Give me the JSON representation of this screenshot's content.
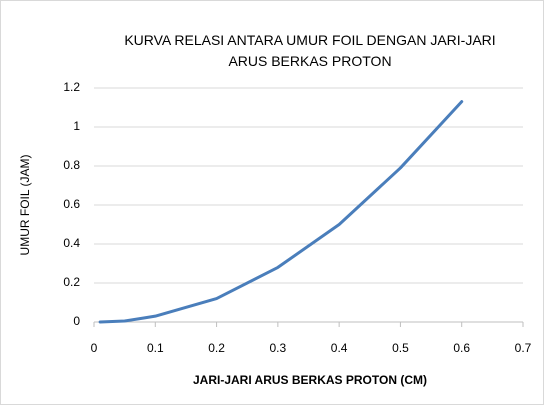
{
  "chart_data": {
    "type": "line",
    "title": "KURVA RELASI ANTARA UMUR FOIL DENGAN JARI-JARI ARUS BERKAS PROTON",
    "x_label": "JARI-JARI ARUS BERKAS PROTON (CM)",
    "y_label": "UMUR FOIL (JAM)",
    "x": [
      0.01,
      0.05,
      0.08,
      0.1,
      0.2,
      0.3,
      0.4,
      0.5,
      0.6
    ],
    "series": [
      {
        "color": "#4a7ebb",
        "values": [
          0,
          0.005,
          0.02,
          0.03,
          0.12,
          0.28,
          0.5,
          0.79,
          1.13
        ]
      }
    ],
    "xlim": [
      0,
      0.7
    ],
    "xticks": [
      0,
      0.1,
      0.2,
      0.3,
      0.4,
      0.5,
      0.6,
      0.7
    ],
    "ylim": [
      0,
      1.2
    ],
    "yticks": [
      0,
      0.2,
      0.4,
      0.6,
      0.8,
      1,
      1.2
    ],
    "grid": true
  }
}
